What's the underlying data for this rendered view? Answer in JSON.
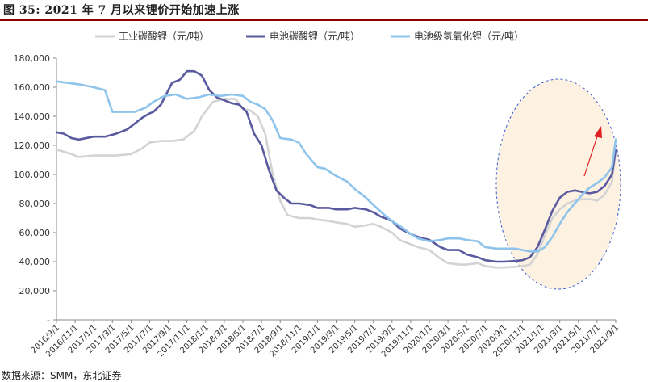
{
  "figure": {
    "title": "图  35:  2021 年 7 月以来锂价开始加速上涨",
    "source": "数据来源：SMM，东北证券"
  },
  "chart_data": {
    "type": "line",
    "ylim": [
      0,
      180000
    ],
    "yticks": [
      "-",
      "20,000",
      "40,000",
      "60,000",
      "80,000",
      "100,000",
      "120,000",
      "140,000",
      "160,000",
      "180,000"
    ],
    "xticks": [
      "2016/9/1",
      "2016/11/1",
      "2017/1/1",
      "2017/3/1",
      "2017/5/1",
      "2017/7/1",
      "2017/9/1",
      "2017/11/1",
      "2018/1/1",
      "2018/3/1",
      "2018/5/1",
      "2018/7/1",
      "2018/9/1",
      "2018/11/1",
      "2019/1/1",
      "2019/3/1",
      "2019/5/1",
      "2019/7/1",
      "2019/9/1",
      "2019/11/1",
      "2020/1/1",
      "2020/3/1",
      "2020/5/1",
      "2020/7/1",
      "2020/9/1",
      "2020/11/1",
      "2021/1/1",
      "2021/3/1",
      "2021/5/1",
      "2021/7/1",
      "2021/9/1"
    ],
    "legend_position": "top",
    "grid": false,
    "series": [
      {
        "name": "工业碳酸锂（元/吨）",
        "color": "#d3d3d3",
        "x": [
          0,
          0.3,
          0.8,
          1.2,
          2,
          2.6,
          3.2,
          4,
          4.6,
          5,
          5.6,
          6.2,
          6.8,
          7.4,
          7.8,
          8.4,
          9,
          9.6,
          10,
          10.4,
          10.8,
          11.2,
          11.6,
          12,
          12.4,
          13,
          13.6,
          14,
          14.6,
          15,
          15.6,
          16,
          16.6,
          17,
          17.4,
          18,
          18.4,
          19,
          19.4,
          20,
          20.6,
          21,
          21.6,
          22,
          22.6,
          23,
          23.6,
          24,
          24.6,
          25,
          25.4,
          25.8,
          26.2,
          26.6,
          27,
          27.4,
          27.8,
          28.2,
          28.6,
          29,
          29.4,
          29.8,
          30
        ],
        "y": [
          117000,
          116000,
          114000,
          112000,
          113000,
          113000,
          113000,
          114000,
          118000,
          122000,
          123000,
          123000,
          124000,
          130000,
          140000,
          150000,
          152000,
          152000,
          145000,
          144000,
          140000,
          128000,
          100000,
          82000,
          72000,
          70000,
          70000,
          69000,
          68000,
          67000,
          66000,
          64000,
          65000,
          66000,
          64000,
          60000,
          55000,
          52000,
          50000,
          48000,
          42000,
          39000,
          38000,
          38000,
          39000,
          37000,
          36000,
          36000,
          36500,
          37000,
          38000,
          45000,
          58000,
          70000,
          76000,
          80000,
          82000,
          83000,
          83000,
          82000,
          86000,
          95000,
          117000
        ]
      },
      {
        "name": "电池碳酸锂（元/吨）",
        "color": "#5a5aa0",
        "x": [
          0,
          0.4,
          0.8,
          1.2,
          2,
          2.6,
          3.2,
          3.8,
          4.2,
          4.6,
          5,
          5.2,
          5.6,
          6,
          6.2,
          6.6,
          7,
          7.4,
          7.8,
          8.2,
          8.6,
          9,
          9.4,
          9.8,
          10.2,
          10.6,
          11,
          11.4,
          11.8,
          12.2,
          12.6,
          13,
          13.6,
          14,
          14.6,
          15,
          15.6,
          16,
          16.6,
          17,
          17.4,
          18,
          18.4,
          19,
          19.4,
          20,
          20.6,
          21,
          21.6,
          22,
          22.6,
          23,
          23.6,
          24,
          24.6,
          25,
          25.4,
          25.8,
          26.2,
          26.6,
          27,
          27.4,
          27.8,
          28.2,
          28.6,
          29,
          29.4,
          29.8,
          30
        ],
        "y": [
          129000,
          128000,
          125000,
          124000,
          126000,
          126000,
          128000,
          131000,
          135000,
          139000,
          142000,
          143000,
          148000,
          158000,
          163000,
          165000,
          171000,
          171000,
          168000,
          158000,
          153000,
          151000,
          149000,
          148000,
          143000,
          128000,
          120000,
          103000,
          89000,
          84000,
          80000,
          80000,
          79000,
          77000,
          77000,
          76000,
          76000,
          77000,
          76000,
          74000,
          71000,
          68000,
          63000,
          59000,
          57000,
          55000,
          50000,
          48000,
          48000,
          45000,
          43000,
          41000,
          40000,
          40000,
          40500,
          41000,
          43000,
          50000,
          62000,
          75000,
          84000,
          88000,
          89000,
          88000,
          87000,
          88000,
          92000,
          100000,
          117000
        ]
      },
      {
        "name": "电池级氢氧化锂（元/吨）",
        "color": "#8ec4ec",
        "x": [
          0,
          0.6,
          1.2,
          2,
          2.6,
          3,
          3.6,
          4.2,
          4.8,
          5.2,
          5.8,
          6.4,
          7,
          7.6,
          8.2,
          8.8,
          9.4,
          10,
          10.4,
          10.8,
          11.2,
          11.6,
          12,
          12.6,
          13,
          13.4,
          14,
          14.4,
          15,
          15.6,
          16,
          16.6,
          17,
          17.6,
          18,
          18.6,
          19,
          19.4,
          20,
          20.6,
          21,
          21.6,
          22,
          22.6,
          23,
          23.6,
          24,
          24.6,
          25,
          25.4,
          25.8,
          26.2,
          26.6,
          27,
          27.4,
          27.8,
          28.2,
          28.6,
          29,
          29.4,
          29.8,
          30
        ],
        "y": [
          164000,
          163000,
          162000,
          160000,
          158000,
          143000,
          143000,
          143000,
          146000,
          150000,
          154000,
          155000,
          152000,
          153000,
          155000,
          154000,
          155000,
          154000,
          150000,
          148000,
          145000,
          137000,
          125000,
          124000,
          122000,
          114000,
          105000,
          104000,
          99000,
          95000,
          90000,
          84000,
          79000,
          72000,
          68000,
          63000,
          59000,
          56000,
          54000,
          55000,
          56000,
          56000,
          55000,
          54000,
          50000,
          49000,
          49000,
          49000,
          48000,
          47000,
          47000,
          50000,
          57000,
          66000,
          74000,
          80000,
          86000,
          91000,
          94000,
          98000,
          105000,
          124000
        ]
      }
    ]
  }
}
